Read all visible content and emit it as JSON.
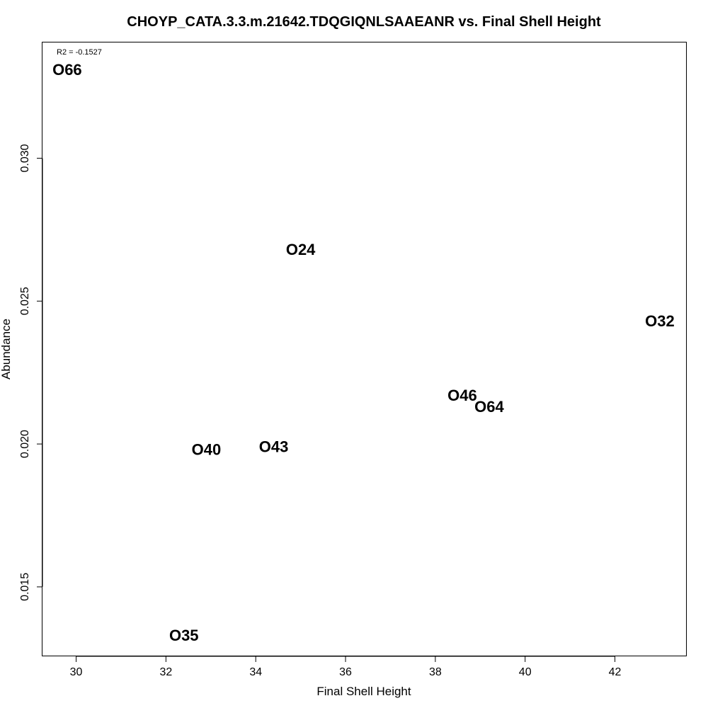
{
  "chart_data": {
    "type": "scatter",
    "title": "CHOYP_CATA.3.3.m.21642.TDQGIQNLSAAEANR vs. Final Shell Height",
    "xlabel": "Final Shell Height",
    "ylabel": "Abundance",
    "annotation": "R2 = -0.1527",
    "xlim": [
      29.25,
      43.6
    ],
    "ylim": [
      0.01257,
      0.03405
    ],
    "xticks": [
      30,
      32,
      34,
      36,
      38,
      40,
      42
    ],
    "yticks": [
      0.015,
      0.02,
      0.025,
      0.03
    ],
    "xtick_labels": [
      "30",
      "32",
      "34",
      "36",
      "38",
      "40",
      "42"
    ],
    "ytick_labels": [
      "0.015",
      "0.020",
      "0.025",
      "0.030"
    ],
    "grid": false,
    "marker": "text-label",
    "points": [
      {
        "label": "O66",
        "x": 29.8,
        "y": 0.0331
      },
      {
        "label": "O24",
        "x": 35.0,
        "y": 0.0268
      },
      {
        "label": "O32",
        "x": 43.0,
        "y": 0.0243
      },
      {
        "label": "O46",
        "x": 38.6,
        "y": 0.0217
      },
      {
        "label": "O64",
        "x": 39.2,
        "y": 0.0213
      },
      {
        "label": "O40",
        "x": 32.9,
        "y": 0.0198
      },
      {
        "label": "O43",
        "x": 34.4,
        "y": 0.0199
      },
      {
        "label": "O35",
        "x": 32.4,
        "y": 0.0133
      }
    ]
  }
}
